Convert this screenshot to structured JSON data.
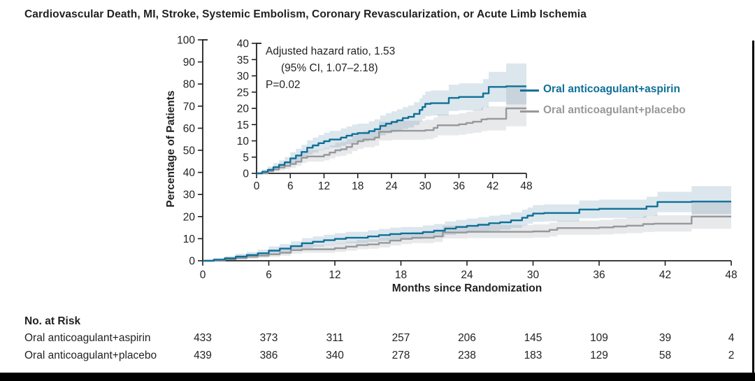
{
  "colors": {
    "text": "#231f20",
    "accent_blue": "#0f6f97",
    "gray": "#97989b",
    "page_edge": "#000000"
  },
  "chart_data": {
    "type": "line",
    "chart_kind": "kaplan-meier-cumulative-incidence-with-inset",
    "title": "Cardiovascular Death, MI, Stroke, Systemic Embolism, Coronary Revascularization, or Acute Limb Ischemia",
    "xlabel": "Months since Randomization",
    "ylabel": "Percentage of Patients",
    "x_ticks": [
      0,
      6,
      12,
      18,
      24,
      30,
      36,
      42,
      48
    ],
    "main_axis": {
      "ylim": [
        0,
        100
      ],
      "yticks": [
        0,
        10,
        20,
        30,
        40,
        50,
        60,
        70,
        80,
        90,
        100
      ]
    },
    "inset_axis": {
      "ylim": [
        0,
        40
      ],
      "yticks": [
        0,
        5,
        10,
        15,
        20,
        25,
        30,
        35,
        40
      ]
    },
    "annotation": {
      "line1": "Adjusted hazard ratio, 1.53",
      "line2": "(95% CI, 1.07–2.18)",
      "line3": "P=0.02"
    },
    "series": [
      {
        "name": "Oral anticoagulant+aspirin",
        "color": "#0f6f97",
        "band_color": "rgba(31,100,145,0.16)",
        "points_format": [
          "month",
          "percent",
          "ci_low",
          "ci_high"
        ],
        "points": [
          [
            0,
            0,
            0,
            0.4
          ],
          [
            1,
            0.5,
            0.1,
            1.2
          ],
          [
            2,
            1.1,
            0.4,
            2.1
          ],
          [
            3,
            1.9,
            1.0,
            3.2
          ],
          [
            4,
            2.6,
            1.5,
            4.0
          ],
          [
            5,
            3.4,
            2.1,
            5.0
          ],
          [
            6,
            4.6,
            3.0,
            6.5
          ],
          [
            7,
            5.5,
            3.8,
            7.6
          ],
          [
            8,
            6.6,
            4.7,
            8.8
          ],
          [
            9,
            7.9,
            5.8,
            10.2
          ],
          [
            10,
            8.6,
            6.4,
            11.0
          ],
          [
            11,
            9.3,
            7.0,
            11.8
          ],
          [
            12,
            9.9,
            7.5,
            12.5
          ],
          [
            13,
            10.4,
            8.0,
            13.1
          ],
          [
            15,
            11.0,
            8.5,
            13.8
          ],
          [
            16,
            11.6,
            9.0,
            14.4
          ],
          [
            17,
            12.1,
            9.5,
            15.0
          ],
          [
            18,
            12.4,
            9.8,
            15.3
          ],
          [
            20,
            13.0,
            10.3,
            16.0
          ],
          [
            21,
            13.6,
            10.8,
            16.6
          ],
          [
            22,
            14.6,
            11.7,
            17.8
          ],
          [
            23,
            15.3,
            12.3,
            18.5
          ],
          [
            24,
            15.8,
            12.7,
            19.1
          ],
          [
            25,
            16.3,
            13.1,
            19.7
          ],
          [
            26,
            17.0,
            13.7,
            20.4
          ],
          [
            27,
            17.4,
            14.1,
            20.9
          ],
          [
            28,
            18.3,
            14.9,
            21.9
          ],
          [
            29,
            19.5,
            16.0,
            23.1
          ],
          [
            29.5,
            20.4,
            16.8,
            24.1
          ],
          [
            30,
            21.4,
            17.6,
            25.2
          ],
          [
            31,
            21.6,
            17.8,
            25.5
          ],
          [
            34.2,
            23.2,
            19.2,
            27.3
          ],
          [
            36,
            23.5,
            19.4,
            27.7
          ],
          [
            40.3,
            24.6,
            20.3,
            29.0
          ],
          [
            41.3,
            26.6,
            22.0,
            31.2
          ],
          [
            44.4,
            26.8,
            21.2,
            33.8
          ],
          [
            48,
            26.8,
            21.2,
            33.8
          ]
        ]
      },
      {
        "name": "Oral anticoagulant+placebo",
        "color": "#97989b",
        "band_color": "rgba(100,108,118,0.15)",
        "points_format": [
          "month",
          "percent",
          "ci_low",
          "ci_high"
        ],
        "points": [
          [
            0,
            0,
            0,
            0.3
          ],
          [
            2,
            0.7,
            0.2,
            1.6
          ],
          [
            3,
            1.2,
            0.5,
            2.3
          ],
          [
            4,
            1.8,
            0.9,
            3.1
          ],
          [
            5,
            2.3,
            1.3,
            3.8
          ],
          [
            6,
            2.9,
            1.7,
            4.5
          ],
          [
            7,
            3.6,
            2.3,
            5.3
          ],
          [
            8,
            4.8,
            3.2,
            6.7
          ],
          [
            9,
            5.2,
            3.6,
            7.2
          ],
          [
            12,
            5.7,
            4.0,
            7.8
          ],
          [
            13,
            6.4,
            4.6,
            8.6
          ],
          [
            14,
            7.1,
            5.2,
            9.4
          ],
          [
            15,
            7.4,
            5.4,
            9.7
          ],
          [
            16,
            8.1,
            6.0,
            10.5
          ],
          [
            17,
            9.1,
            6.9,
            11.7
          ],
          [
            18,
            9.9,
            7.5,
            12.6
          ],
          [
            19,
            10.4,
            8.0,
            13.1
          ],
          [
            21,
            11.0,
            8.5,
            13.8
          ],
          [
            21.8,
            12.8,
            10.1,
            15.9
          ],
          [
            24,
            13.1,
            10.3,
            16.2
          ],
          [
            30,
            13.3,
            10.5,
            16.5
          ],
          [
            31.5,
            14.0,
            11.0,
            17.2
          ],
          [
            32.2,
            14.8,
            11.7,
            18.1
          ],
          [
            36,
            15.1,
            11.9,
            18.5
          ],
          [
            37.3,
            15.5,
            12.2,
            19.0
          ],
          [
            38.5,
            15.9,
            12.5,
            19.5
          ],
          [
            40,
            16.6,
            13.0,
            20.3
          ],
          [
            41,
            16.8,
            13.2,
            20.6
          ],
          [
            44.4,
            20.0,
            14.5,
            26.5
          ],
          [
            48,
            20.0,
            14.5,
            26.5
          ]
        ]
      }
    ],
    "no_at_risk": {
      "heading": "No. at Risk",
      "rows": [
        {
          "label": "Oral anticoagulant+aspirin",
          "values": [
            433,
            373,
            311,
            257,
            206,
            145,
            109,
            39,
            4
          ]
        },
        {
          "label": "Oral anticoagulant+placebo",
          "values": [
            439,
            386,
            340,
            278,
            238,
            183,
            129,
            58,
            2
          ]
        }
      ]
    }
  }
}
